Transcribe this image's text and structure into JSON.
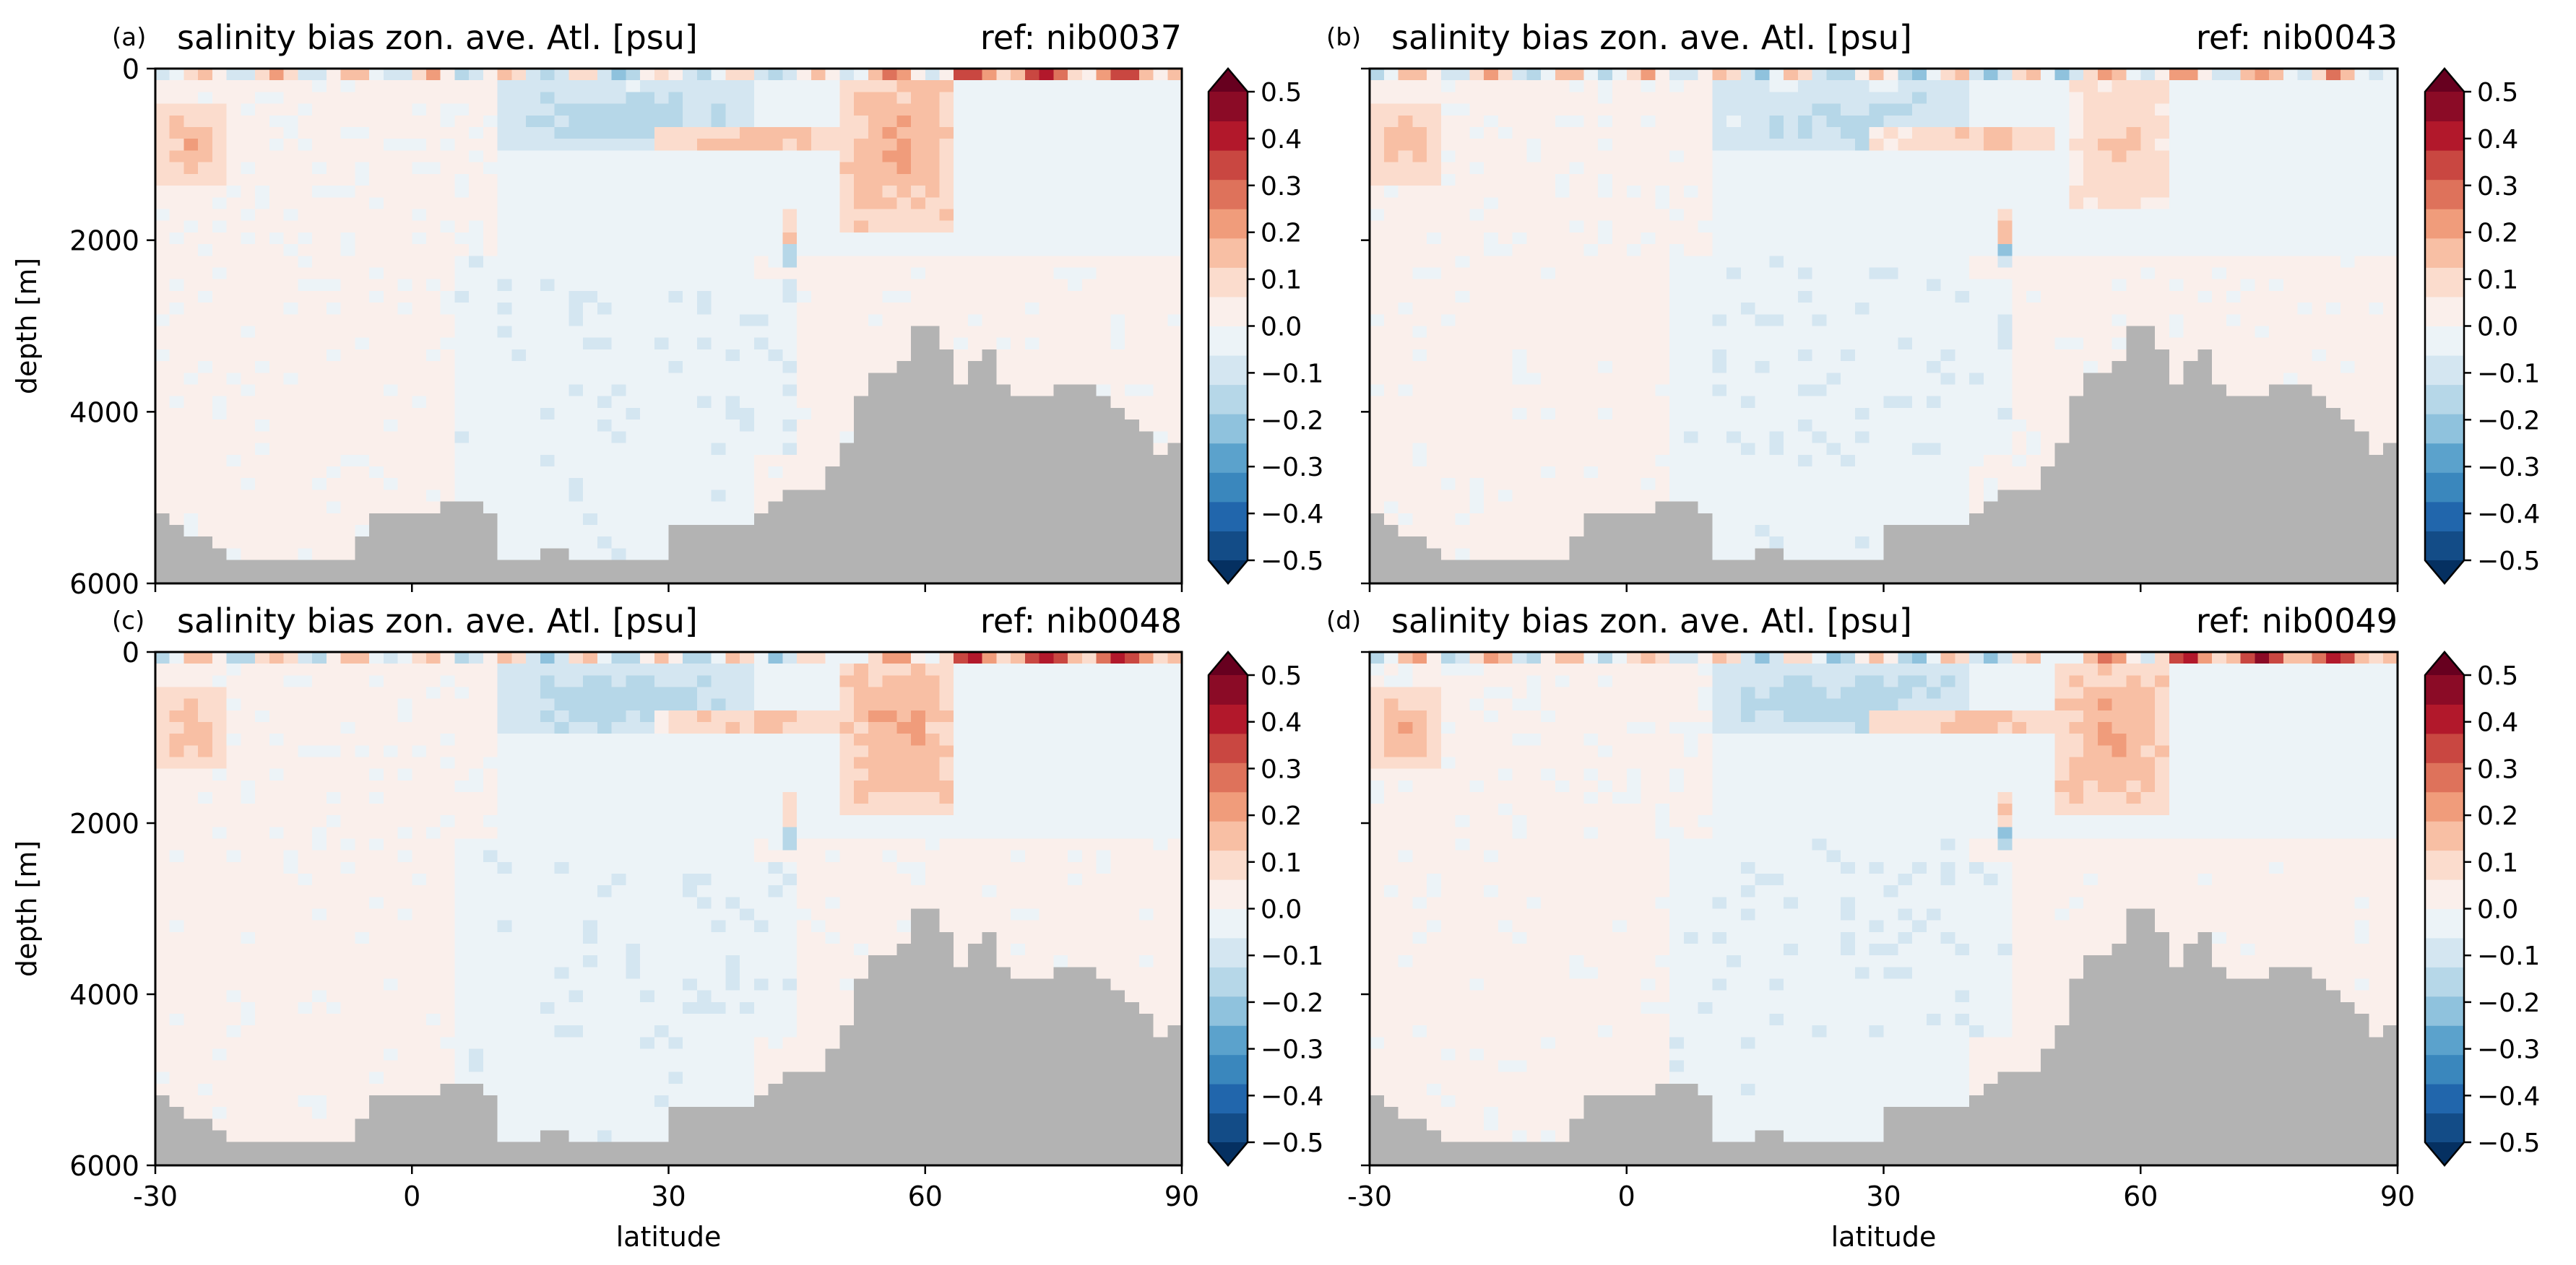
{
  "figure": {
    "panels": [
      {
        "id": "a",
        "letter": "(a)",
        "title": "salinity bias zon. ave. Atl. [psu]",
        "ref": "ref: nib0037"
      },
      {
        "id": "b",
        "letter": "(b)",
        "title": "salinity bias zon. ave. Atl. [psu]",
        "ref": "ref: nib0043"
      },
      {
        "id": "c",
        "letter": "(c)",
        "title": "salinity bias zon. ave. Atl. [psu]",
        "ref": "ref: nib0048"
      },
      {
        "id": "d",
        "letter": "(d)",
        "title": "salinity bias zon. ave. Atl. [psu]",
        "ref": "ref: nib0049"
      }
    ],
    "xlabel": "latitude",
    "ylabel": "depth [m]",
    "x_ticks": [
      "-30",
      "0",
      "30",
      "60",
      "90"
    ],
    "y_ticks": [
      "0",
      "2000",
      "4000",
      "6000"
    ],
    "colorbar_ticks": [
      "0.5",
      "0.4",
      "0.3",
      "0.2",
      "0.1",
      "0.0",
      "−0.1",
      "−0.2",
      "−0.3",
      "−0.4",
      "−0.5"
    ],
    "colors": {
      "land": "#b3b3b3",
      "colormap": [
        "#053061",
        "#134c87",
        "#2166ac",
        "#3a87bd",
        "#5ba2cc",
        "#8fc2dd",
        "#b6d7e8",
        "#d4e6f1",
        "#ecf3f7",
        "#faefeb",
        "#fbdccd",
        "#f8bfa4",
        "#f09c7b",
        "#de725b",
        "#c94741",
        "#b2182b",
        "#8b0b26",
        "#67001f"
      ]
    }
  },
  "chart_data": [
    {
      "type": "heatmap",
      "panel": "a",
      "title": "salinity bias zon. ave. Atl. [psu]",
      "annotation": "ref: nib0037",
      "xlabel": "latitude",
      "ylabel": "depth [m]",
      "xlim": [
        -30,
        90
      ],
      "ylim": [
        6000,
        0
      ],
      "clim": [
        -0.5,
        0.5
      ],
      "colorbar_levels": [
        -0.5,
        -0.4,
        -0.3,
        -0.2,
        -0.1,
        0.0,
        0.1,
        0.2,
        0.3,
        0.4,
        0.5
      ],
      "features": [
        {
          "lat": [
            -30,
            -22
          ],
          "depth": [
            400,
            1400
          ],
          "bias": 0.17
        },
        {
          "lat": [
            10,
            40
          ],
          "depth": [
            200,
            1000
          ],
          "bias": -0.17
        },
        {
          "lat": [
            28,
            50
          ],
          "depth": [
            650,
            1000
          ],
          "bias": 0.2
        },
        {
          "lat": [
            50,
            64
          ],
          "depth": [
            0,
            1900
          ],
          "bias": 0.22
        },
        {
          "lat": [
            64,
            90
          ],
          "depth": [
            0,
            80
          ],
          "bias": 0.4
        },
        {
          "lat": [
            43,
            44.5
          ],
          "depth": [
            1700,
            2100
          ],
          "bias": 0.2
        },
        {
          "lat": [
            43,
            44.5
          ],
          "depth": [
            2100,
            2250
          ],
          "bias": -0.3
        }
      ]
    },
    {
      "type": "heatmap",
      "panel": "b",
      "title": "salinity bias zon. ave. Atl. [psu]",
      "annotation": "ref: nib0043",
      "xlabel": "latitude",
      "ylabel": "depth [m]",
      "xlim": [
        -30,
        90
      ],
      "ylim": [
        6000,
        0
      ],
      "clim": [
        -0.5,
        0.5
      ],
      "colorbar_levels": [
        -0.5,
        -0.4,
        -0.3,
        -0.2,
        -0.1,
        0.0,
        0.1,
        0.2,
        0.3,
        0.4,
        0.5
      ],
      "features": [
        {
          "lat": [
            -30,
            -22
          ],
          "depth": [
            400,
            1400
          ],
          "bias": 0.15
        },
        {
          "lat": [
            10,
            40
          ],
          "depth": [
            200,
            1000
          ],
          "bias": -0.15
        },
        {
          "lat": [
            28,
            50
          ],
          "depth": [
            650,
            1000
          ],
          "bias": 0.17
        },
        {
          "lat": [
            52,
            64
          ],
          "depth": [
            0,
            1700
          ],
          "bias": 0.15
        },
        {
          "lat": [
            64,
            90
          ],
          "depth": [
            0,
            80
          ],
          "bias": 0.12
        },
        {
          "lat": [
            43,
            44.5
          ],
          "depth": [
            1700,
            2100
          ],
          "bias": 0.2
        },
        {
          "lat": [
            43,
            44.5
          ],
          "depth": [
            2100,
            2250
          ],
          "bias": -0.3
        }
      ]
    },
    {
      "type": "heatmap",
      "panel": "c",
      "title": "salinity bias zon. ave. Atl. [psu]",
      "annotation": "ref: nib0048",
      "xlabel": "latitude",
      "ylabel": "depth [m]",
      "xlim": [
        -30,
        90
      ],
      "ylim": [
        6000,
        0
      ],
      "clim": [
        -0.5,
        0.5
      ],
      "colorbar_levels": [
        -0.5,
        -0.4,
        -0.3,
        -0.2,
        -0.1,
        0.0,
        0.1,
        0.2,
        0.3,
        0.4,
        0.5
      ],
      "features": [
        {
          "lat": [
            -30,
            -22
          ],
          "depth": [
            400,
            1400
          ],
          "bias": 0.17
        },
        {
          "lat": [
            10,
            40
          ],
          "depth": [
            200,
            1000
          ],
          "bias": -0.17
        },
        {
          "lat": [
            28,
            50
          ],
          "depth": [
            650,
            1000
          ],
          "bias": 0.2
        },
        {
          "lat": [
            50,
            64
          ],
          "depth": [
            0,
            1900
          ],
          "bias": 0.22
        },
        {
          "lat": [
            64,
            90
          ],
          "depth": [
            0,
            80
          ],
          "bias": 0.45
        },
        {
          "lat": [
            43,
            44.5
          ],
          "depth": [
            1700,
            2100
          ],
          "bias": 0.2
        },
        {
          "lat": [
            43,
            44.5
          ],
          "depth": [
            2100,
            2250
          ],
          "bias": -0.3
        }
      ]
    },
    {
      "type": "heatmap",
      "panel": "d",
      "title": "salinity bias zon. ave. Atl. [psu]",
      "annotation": "ref: nib0049",
      "xlabel": "latitude",
      "ylabel": "depth [m]",
      "xlim": [
        -30,
        90
      ],
      "ylim": [
        6000,
        0
      ],
      "clim": [
        -0.5,
        0.5
      ],
      "colorbar_levels": [
        -0.5,
        -0.4,
        -0.3,
        -0.2,
        -0.1,
        0.0,
        0.1,
        0.2,
        0.3,
        0.4,
        0.5
      ],
      "features": [
        {
          "lat": [
            -30,
            -22
          ],
          "depth": [
            400,
            1400
          ],
          "bias": 0.17
        },
        {
          "lat": [
            10,
            40
          ],
          "depth": [
            200,
            1000
          ],
          "bias": -0.17
        },
        {
          "lat": [
            28,
            50
          ],
          "depth": [
            650,
            1000
          ],
          "bias": 0.2
        },
        {
          "lat": [
            50,
            64
          ],
          "depth": [
            0,
            1900
          ],
          "bias": 0.22
        },
        {
          "lat": [
            64,
            90
          ],
          "depth": [
            0,
            80
          ],
          "bias": 0.45
        },
        {
          "lat": [
            43,
            44.5
          ],
          "depth": [
            1700,
            2100
          ],
          "bias": 0.2
        },
        {
          "lat": [
            43,
            44.5
          ],
          "depth": [
            2100,
            2250
          ],
          "bias": -0.3
        }
      ]
    }
  ]
}
